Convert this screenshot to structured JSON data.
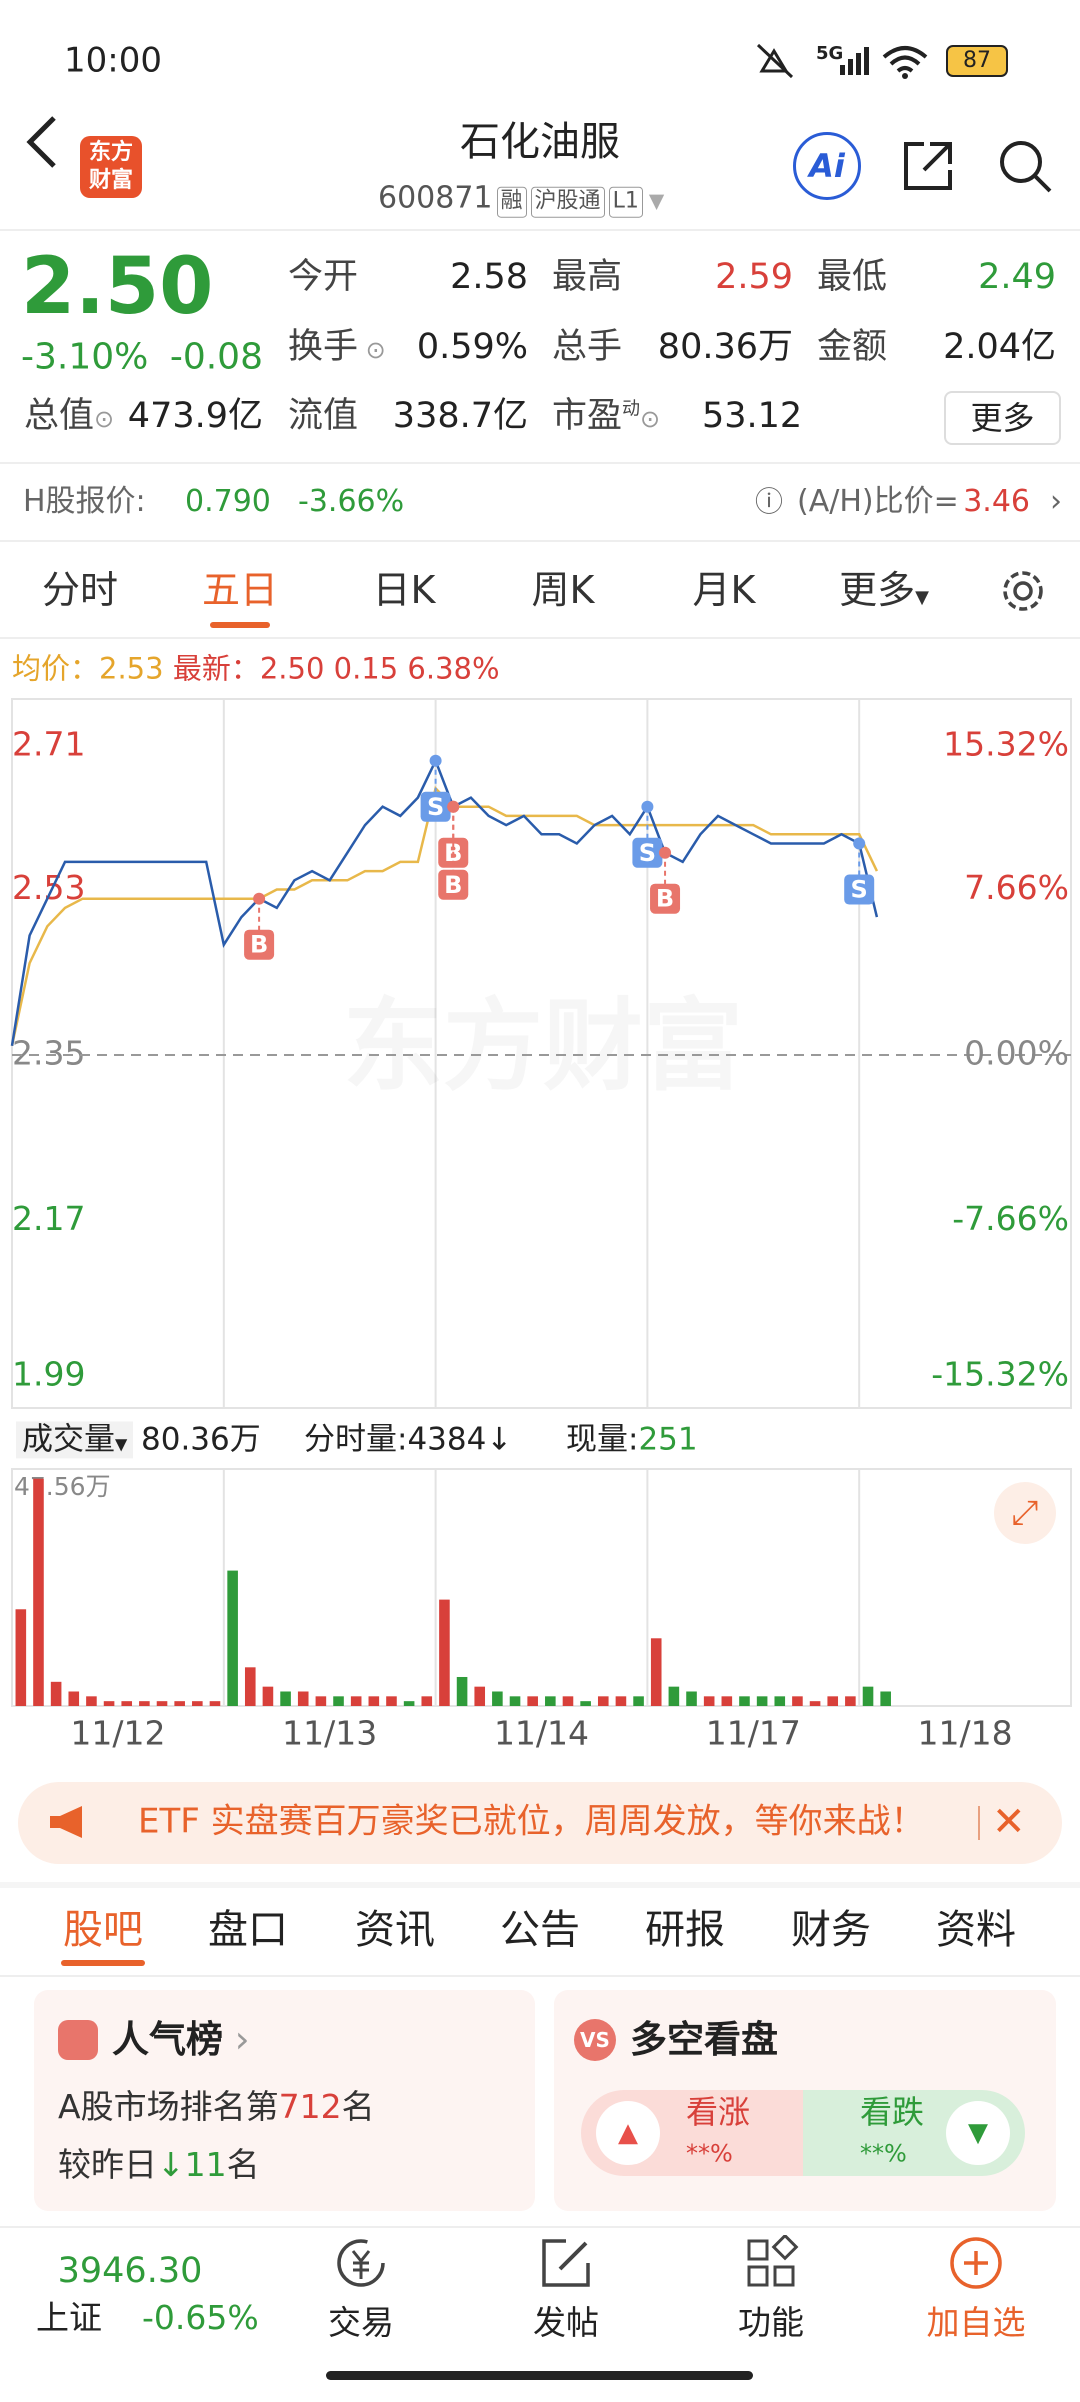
{
  "status_bar": {
    "time": "10:00",
    "network": "5G",
    "battery": "87"
  },
  "header": {
    "logo": "东方财富",
    "title": "石化油服",
    "code": "600871",
    "tags": [
      "融",
      "沪股通",
      "L1"
    ],
    "ai": "Ai"
  },
  "quote": {
    "price": "2.50",
    "change_pct": "-3.10%",
    "change": "-0.08",
    "stats": [
      [
        {
          "label": "今开",
          "value": "2.58"
        },
        {
          "label": "最高",
          "value": "2.59"
        },
        {
          "label": "最低",
          "value": "2.49"
        }
      ],
      [
        {
          "label": "换手",
          "value": "0.59%"
        },
        {
          "label": "总手",
          "value": "80.36万"
        },
        {
          "label": "金额",
          "value": "2.04亿"
        }
      ],
      [
        {
          "label": "总值",
          "value": "473.9亿"
        },
        {
          "label": "流值",
          "value": "338.7亿"
        },
        {
          "label": "市盈",
          "value": "53.12"
        }
      ]
    ],
    "pe_mark": "动",
    "more": "更多"
  },
  "h_share": {
    "label": "H股报价:",
    "price": "0.790",
    "change": "-3.66%",
    "ratio_label": "(A/H)比价=",
    "ratio": "3.46"
  },
  "period_tabs": [
    "分时",
    "五日",
    "日K",
    "周K",
    "月K",
    "更多"
  ],
  "chart": {
    "type": "line",
    "avg_label": "均价：",
    "avg_value": "2.53",
    "last_label": "最新：",
    "last_value": "2.50",
    "extra": [
      "0.15",
      "6.38%"
    ],
    "watermark": "东方财富",
    "categories": [
      "11/12",
      "11/13",
      "11/14",
      "11/17",
      "11/18"
    ],
    "ylim": [
      1.99,
      2.71
    ],
    "yticks": [
      2.71,
      2.53,
      2.35,
      2.17,
      1.99
    ],
    "y2lim": [
      -15.32,
      15.32
    ],
    "y2ticks": [
      {
        "value": 15.32,
        "label": "15.32%"
      },
      {
        "value": 7.66,
        "label": "7.66%"
      },
      {
        "value": 0,
        "label": "0.00%"
      },
      {
        "value": -7.66,
        "label": "-7.66%"
      },
      {
        "value": -15.32,
        "label": "-15.32%"
      }
    ],
    "price": [
      2.36,
      2.48,
      2.52,
      2.56,
      2.56,
      2.56,
      2.56,
      2.56,
      2.56,
      2.56,
      2.56,
      2.56,
      2.47,
      2.5,
      2.52,
      2.51,
      2.54,
      2.55,
      2.54,
      2.57,
      2.6,
      2.62,
      2.61,
      2.63,
      2.67,
      2.62,
      2.63,
      2.61,
      2.6,
      2.61,
      2.59,
      2.59,
      2.58,
      2.6,
      2.61,
      2.59,
      2.62,
      2.57,
      2.56,
      2.59,
      2.61,
      2.6,
      2.59,
      2.58,
      2.58,
      2.58,
      2.58,
      2.59,
      2.58,
      2.5,
      null,
      null,
      null,
      null,
      null,
      null,
      null,
      null,
      null,
      null
    ],
    "avg": [
      2.36,
      2.45,
      2.49,
      2.51,
      2.52,
      2.52,
      2.52,
      2.52,
      2.52,
      2.52,
      2.52,
      2.52,
      2.52,
      2.52,
      2.52,
      2.53,
      2.53,
      2.54,
      2.54,
      2.54,
      2.55,
      2.55,
      2.56,
      2.56,
      2.64,
      2.62,
      2.62,
      2.62,
      2.61,
      2.61,
      2.61,
      2.61,
      2.61,
      2.6,
      2.6,
      2.6,
      2.6,
      2.6,
      2.6,
      2.6,
      2.6,
      2.6,
      2.6,
      2.59,
      2.59,
      2.59,
      2.59,
      2.59,
      2.59,
      2.55,
      null,
      null,
      null,
      null,
      null,
      null,
      null,
      null,
      null,
      null
    ],
    "marks": [
      {
        "label": "B",
        "index": 14
      },
      {
        "label": "S",
        "index": 24
      },
      {
        "label": "B",
        "index": 25
      },
      {
        "label": "B",
        "index": 25
      },
      {
        "label": "S",
        "index": 36
      },
      {
        "label": "B",
        "index": 37
      },
      {
        "label": "S",
        "index": 48
      }
    ]
  },
  "volume": {
    "selector": "成交量",
    "total": "80.36万",
    "slot_label": "分时量:",
    "slot_value": "4384",
    "current_label": "现量:",
    "current_value": "251",
    "ylim": [
      0,
      47.56
    ],
    "yticks": [
      {
        "value": 47.56,
        "label": "47.56万"
      }
    ],
    "values": [
      20,
      47,
      5,
      3,
      2,
      1,
      1,
      1,
      1,
      1,
      1,
      1,
      28,
      8,
      4,
      3,
      3,
      2,
      2,
      2,
      2,
      2,
      1,
      2,
      22,
      6,
      4,
      3,
      2,
      2,
      2,
      2,
      1,
      2,
      2,
      2,
      14,
      4,
      3,
      2,
      2,
      2,
      2,
      2,
      2,
      1,
      2,
      2,
      4,
      3,
      null,
      null,
      null,
      null,
      null,
      null,
      null,
      null,
      null,
      null
    ]
  },
  "banner": {
    "text": "ETF 实盘赛百万豪奖已就位，周周发放，等你来战！"
  },
  "content_tabs": [
    "股吧",
    "盘口",
    "资讯",
    "公告",
    "研报",
    "财务",
    "资料"
  ],
  "cards": {
    "rank": {
      "title": "人气榜",
      "line1_pre": "A股市场排名第",
      "line1_num": "712",
      "line1_post": "名",
      "line2_pre": "较昨日",
      "line2_num": "11",
      "line2_post": "名"
    },
    "vote": {
      "title": "多空看盘",
      "bull": "看涨",
      "bull_pct": "**%",
      "bear": "看跌",
      "bear_pct": "**%"
    }
  },
  "bottom_nav": {
    "index_value": "3946.30",
    "index_name": "上证",
    "index_change": "-0.65%",
    "items": [
      "交易",
      "发帖",
      "功能",
      "加自选"
    ]
  }
}
